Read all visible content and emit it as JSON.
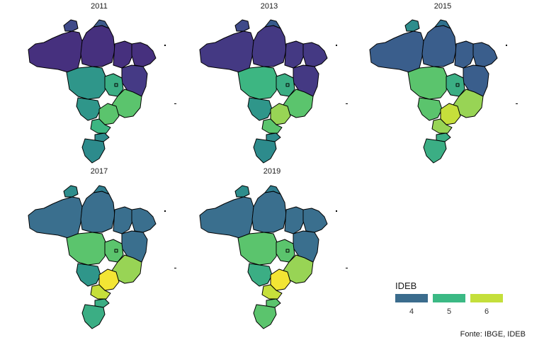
{
  "maps": [
    {
      "title": "2011",
      "fills": {
        "N": "#46307e",
        "NW": "#3f4a89",
        "W": "#3d5a8b",
        "MT": "#2f968a",
        "GO": "#3bae84",
        "DF": "#3bae84",
        "CE": "#46307e",
        "NE": "#46307e",
        "MS": "#2f968a",
        "BA": "#453a85",
        "MG": "#5bc46d",
        "SP": "#5bc46d",
        "PR": "#3db682",
        "SC": "#2d8b8c",
        "RS": "#2d8b8c",
        "AM": "#46307e"
      }
    },
    {
      "title": "2013",
      "fills": {
        "N": "#443983",
        "NW": "#3f4a89",
        "W": "#375a8c",
        "MT": "#3db682",
        "GO": "#3bae84",
        "DF": "#3bae84",
        "CE": "#443983",
        "NE": "#443983",
        "MS": "#2f968a",
        "BA": "#443983",
        "MG": "#5bc46d",
        "SP": "#98d455",
        "PR": "#5bc46d",
        "SC": "#2d8b8c",
        "RS": "#2d8b8c",
        "AM": "#443983"
      }
    },
    {
      "title": "2015",
      "fills": {
        "N": "#3a5e8c",
        "NW": "#2e8d8c",
        "W": "#2f718e",
        "MT": "#5bc46d",
        "GO": "#3bae84",
        "DF": "#3bae84",
        "CE": "#3a5e8c",
        "NE": "#3a5e8c",
        "MS": "#5bc46d",
        "BA": "#3a5e8c",
        "MG": "#98d455",
        "SP": "#c6df3b",
        "PR": "#98d455",
        "SC": "#3bae84",
        "RS": "#3bae84",
        "AM": "#3a5e8c"
      }
    },
    {
      "title": "2017",
      "fills": {
        "N": "#3a6f8e",
        "NW": "#2e8d8c",
        "W": "#2f7d8e",
        "MT": "#5bc46d",
        "GO": "#5bc46d",
        "DF": "#5bc46d",
        "CE": "#3a6f8e",
        "NE": "#3a6f8e",
        "MS": "#2f968a",
        "BA": "#3a6f8e",
        "MG": "#98d455",
        "SP": "#f3e534",
        "PR": "#c6df3b",
        "SC": "#3bae84",
        "RS": "#3bae84",
        "AM": "#3a6f8e"
      }
    },
    {
      "title": "2019",
      "fills": {
        "N": "#3a6f8e",
        "NW": "#2e8d8c",
        "W": "#2f7d8e",
        "MT": "#5bc46d",
        "GO": "#5bc46d",
        "DF": "#5bc46d",
        "CE": "#3a6f8e",
        "NE": "#3a6f8e",
        "MS": "#3bae84",
        "BA": "#3a6f8e",
        "MG": "#98d455",
        "SP": "#f3e534",
        "PR": "#c6df3b",
        "SC": "#5bc46d",
        "RS": "#5bc46d",
        "AM": "#3a6f8e"
      }
    }
  ],
  "legend": {
    "title": "IDEB",
    "items": [
      {
        "label": "4",
        "color": "#3b6c8d"
      },
      {
        "label": "5",
        "color": "#3bb984"
      },
      {
        "label": "6",
        "color": "#c4df3b"
      }
    ]
  },
  "caption": "Fonte: IBGE, IDEB"
}
